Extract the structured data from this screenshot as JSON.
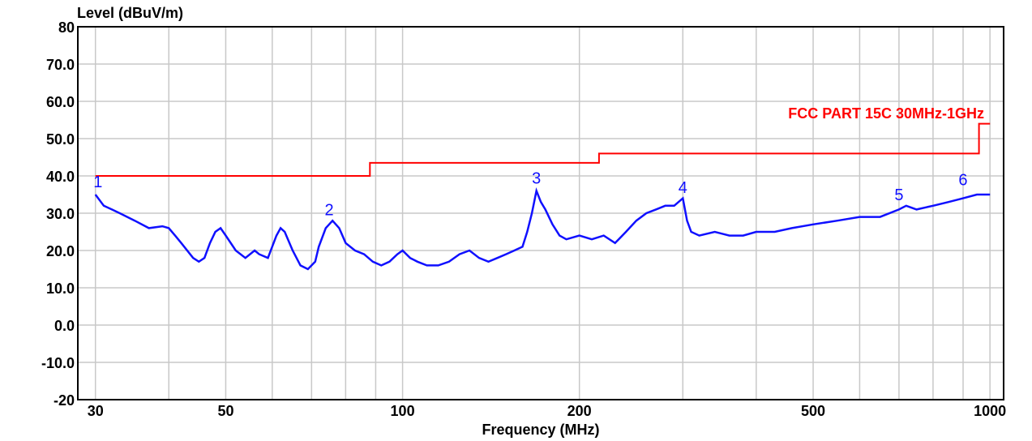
{
  "chart_data": {
    "type": "line",
    "y_label": "Level (dBuV/m)",
    "x_label": "Frequency (MHz)",
    "x_log": true,
    "xlim": [
      28,
      1055
    ],
    "xticks": [
      30,
      50,
      100,
      200,
      500,
      1000
    ],
    "xminor": [
      40,
      60,
      70,
      80,
      90,
      300,
      400,
      600,
      700,
      800,
      900
    ],
    "ylim": [
      -20,
      80
    ],
    "yticks": [
      {
        "value": -20,
        "label": "-20"
      },
      {
        "value": -10,
        "label": "-10.0"
      },
      {
        "value": 0,
        "label": "0.0"
      },
      {
        "value": 10,
        "label": "10.0"
      },
      {
        "value": 20,
        "label": "20.0"
      },
      {
        "value": 30,
        "label": "30.0"
      },
      {
        "value": 40,
        "label": "40.0"
      },
      {
        "value": 50,
        "label": "50.0"
      },
      {
        "value": 60,
        "label": "60.0"
      },
      {
        "value": 70,
        "label": "70.0"
      },
      80
    ],
    "grid": true,
    "series": [
      {
        "name": "FCC PART 15C 30MHz-1GHz",
        "color": "#ff0000",
        "x": [
          30,
          88,
          88,
          216,
          216,
          958,
          958,
          1000
        ],
        "values": [
          40,
          40,
          43.5,
          43.5,
          46,
          46,
          54,
          54
        ]
      },
      {
        "color": "#1010ff",
        "x": [
          30,
          31,
          32,
          33,
          35,
          37,
          39,
          40,
          41,
          42,
          44,
          45,
          46,
          47,
          48,
          49,
          50,
          52,
          54,
          56,
          57,
          59,
          61,
          62,
          63,
          65,
          67,
          69,
          71,
          72,
          74,
          75,
          76,
          78,
          80,
          83,
          86,
          89,
          92,
          95,
          98,
          100,
          103,
          106,
          110,
          115,
          120,
          125,
          130,
          135,
          140,
          145,
          150,
          155,
          160,
          163,
          166,
          169,
          172,
          175,
          180,
          185,
          190,
          200,
          210,
          220,
          230,
          240,
          250,
          260,
          270,
          280,
          290,
          300,
          305,
          310,
          320,
          340,
          360,
          380,
          400,
          430,
          460,
          500,
          550,
          600,
          650,
          700,
          720,
          750,
          800,
          850,
          900,
          950,
          1000
        ],
        "values": [
          35,
          32,
          31,
          30,
          28,
          26,
          26.5,
          26,
          24,
          22,
          18,
          17,
          18,
          22,
          25,
          26,
          24,
          20,
          18,
          20,
          19,
          18,
          24,
          26,
          25,
          20,
          16,
          15,
          17,
          21,
          26,
          27,
          28,
          26,
          22,
          20,
          19,
          17,
          16,
          17,
          19,
          20,
          18,
          17,
          16,
          16,
          17,
          19,
          20,
          18,
          17,
          18,
          19,
          20,
          21,
          25,
          30,
          36,
          33,
          31,
          27,
          24,
          23,
          24,
          23,
          24,
          22,
          25,
          28,
          30,
          31,
          32,
          32,
          34,
          28,
          25,
          24,
          25,
          24,
          24,
          25,
          25,
          26,
          27,
          28,
          29,
          29,
          31,
          32,
          31,
          32,
          33,
          34,
          35,
          35
        ]
      }
    ],
    "markers": [
      {
        "label": "1",
        "x": 30.3,
        "value": 35.5
      },
      {
        "label": "2",
        "x": 75,
        "value": 28
      },
      {
        "label": "3",
        "x": 169,
        "value": 36.5
      },
      {
        "label": "4",
        "x": 300,
        "value": 34
      },
      {
        "label": "5",
        "x": 700,
        "value": 32
      },
      {
        "label": "6",
        "x": 900,
        "value": 36
      }
    ],
    "marker_color": "#1010ff"
  }
}
